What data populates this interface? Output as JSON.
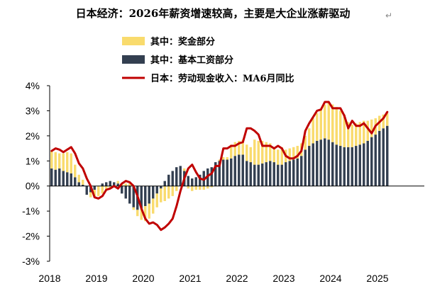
{
  "chart_data": {
    "type": "bar",
    "title": "日本经济：2026年薪资增速较高，主要是大企业涨薪驱动",
    "title_suffix": "↵",
    "xlabel": "",
    "ylabel": "",
    "ylim": [
      -3,
      4
    ],
    "ytick_labels": [
      "-3%",
      "-2%",
      "-1%",
      "0%",
      "1%",
      "2%",
      "3%",
      "4%"
    ],
    "xtick_labels": [
      "2018",
      "2019",
      "2020",
      "2021",
      "2022",
      "2023",
      "2024",
      "2025"
    ],
    "x_start": "2018-01",
    "grid": false,
    "legend_position": "top-left",
    "colors": {
      "bonus": "#F9DB6D",
      "base": "#333F50",
      "total": "#C00000"
    },
    "series": [
      {
        "name": "其中：奖金部分",
        "kind": "stacked-bar",
        "values": [
          0.7,
          0.7,
          0.6,
          0.7,
          0.8,
          0.8,
          0.5,
          0.3,
          0.2,
          0.0,
          -0.2,
          -0.3,
          -0.4,
          -0.3,
          -0.15,
          -0.1,
          0.0,
          0.1,
          0.1,
          0.1,
          0.1,
          -0.1,
          -0.25,
          -0.45,
          -0.6,
          -0.6,
          -0.6,
          -0.55,
          -0.55,
          -0.6,
          -0.5,
          -0.4,
          -0.2,
          0.0,
          0.1,
          -0.1,
          -0.2,
          -0.15,
          -0.15,
          -0.15,
          -0.1,
          -0.05,
          0.0,
          0.05,
          0.1,
          0.1,
          0.55,
          0.55,
          0.55,
          0.6,
          0.65,
          0.6,
          1.0,
          0.95,
          0.9,
          0.8,
          0.7,
          0.6,
          0.6,
          0.7,
          0.5,
          0.5,
          0.5,
          0.5,
          0.5,
          0.55,
          0.7,
          1.0,
          1.1,
          1.2,
          1.35,
          1.5,
          1.5,
          1.5,
          1.4,
          1.3,
          1.0,
          0.9,
          0.9,
          0.9,
          0.9,
          0.8,
          0.7,
          0.65,
          0.6,
          0.55,
          0.5
        ]
      },
      {
        "name": "其中：基本工资部分",
        "kind": "stacked-bar",
        "values": [
          0.7,
          0.65,
          0.7,
          0.6,
          0.55,
          0.5,
          0.35,
          0.15,
          0.05,
          -0.35,
          -0.25,
          -0.15,
          0.0,
          0.1,
          0.15,
          0.2,
          0.15,
          0.1,
          -0.3,
          -0.5,
          -0.7,
          -0.85,
          -0.95,
          -0.9,
          -0.8,
          -0.7,
          -0.5,
          -0.3,
          -0.1,
          0.2,
          0.45,
          0.6,
          0.75,
          0.8,
          0.6,
          0.4,
          0.3,
          0.35,
          0.45,
          0.6,
          0.7,
          0.75,
          0.95,
          1.0,
          1.05,
          1.05,
          1.1,
          1.2,
          1.25,
          1.25,
          1.0,
          0.95,
          0.85,
          0.85,
          0.9,
          0.95,
          1.0,
          0.95,
          0.85,
          0.85,
          0.95,
          1.0,
          1.05,
          1.1,
          1.2,
          1.45,
          1.6,
          1.7,
          1.8,
          1.85,
          1.9,
          1.85,
          1.75,
          1.65,
          1.6,
          1.55,
          1.55,
          1.55,
          1.6,
          1.65,
          1.7,
          1.8,
          1.95,
          2.05,
          2.2,
          2.3,
          2.4
        ]
      },
      {
        "name": "日本：劳动现金收入：MA6月同比",
        "kind": "line",
        "values": [
          1.4,
          1.5,
          1.45,
          1.35,
          1.45,
          1.55,
          1.3,
          0.9,
          0.7,
          0.3,
          0.0,
          -0.45,
          -0.5,
          -0.4,
          -0.15,
          -0.1,
          0.0,
          -0.1,
          0.1,
          0.2,
          0.15,
          0.0,
          -0.4,
          -0.9,
          -1.3,
          -1.5,
          -1.45,
          -1.55,
          -1.75,
          -1.65,
          -1.5,
          -1.3,
          -0.8,
          -0.2,
          0.3,
          0.7,
          0.85,
          0.55,
          0.3,
          0.25,
          0.4,
          0.5,
          0.8,
          0.8,
          1.5,
          1.5,
          1.6,
          1.6,
          1.7,
          1.75,
          2.3,
          2.3,
          2.2,
          2.05,
          1.6,
          1.6,
          1.6,
          1.5,
          1.6,
          1.5,
          1.2,
          1.1,
          1.1,
          1.2,
          1.4,
          2.2,
          2.5,
          2.75,
          3.0,
          3.05,
          3.35,
          3.35,
          3.1,
          3.1,
          3.1,
          2.8,
          2.3,
          2.6,
          2.4,
          2.4,
          2.5,
          2.3,
          2.1,
          2.4,
          2.55,
          2.7,
          2.95
        ]
      }
    ]
  }
}
